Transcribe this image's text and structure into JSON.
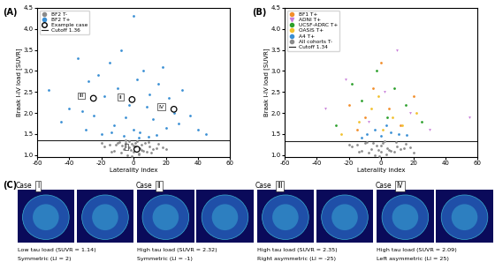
{
  "chart_data": [
    {
      "type": "scatter",
      "panel_label": "(A)",
      "x_label": "Laterality index",
      "y_label": "Braak I-IV load [SUVR]",
      "xlim": [
        -60,
        60
      ],
      "xticks": [
        -60,
        -40,
        -20,
        0,
        20,
        40,
        60
      ],
      "ylim": [
        0.95,
        4.5
      ],
      "yticks": [
        {
          "value": 1.0,
          "label": "1.0"
        },
        {
          "value": 1.5,
          "label": "1.5"
        },
        {
          "value": 2.0,
          "label": "2.0"
        },
        {
          "value": 2.5,
          "label": "2.5"
        },
        {
          "value": 3.0,
          "label": "3.0"
        },
        {
          "value": 3.5,
          "label": "3.5"
        },
        {
          "value": 4.0,
          "label": "4.0"
        },
        {
          "value": 4.5,
          "label": "4.5"
        }
      ],
      "legend": "upper left",
      "reference_line": {
        "value": 1.36,
        "name": "Cutoff 1.36",
        "color": "#222222"
      },
      "series": [
        {
          "name": "BF2 T-",
          "color": "#8c8c8c",
          "marker": "o",
          "x": [
            -18,
            -15,
            -12,
            -10,
            -8,
            -7,
            -6,
            -5,
            -4,
            -3,
            -2,
            -1,
            0,
            1,
            2,
            3,
            4,
            5,
            6,
            7,
            8,
            10,
            12,
            15,
            18,
            -9,
            -3,
            3,
            9,
            0,
            -14,
            14,
            -5,
            5,
            -1,
            1,
            -11,
            11,
            20,
            -20
          ],
          "values": [
            1.2,
            1.25,
            1.1,
            1.3,
            1.05,
            1.22,
            1.15,
            1.28,
            1.0,
            1.18,
            1.12,
            1.26,
            1.08,
            1.2,
            1.33,
            1.03,
            1.16,
            1.24,
            1.11,
            1.29,
            1.07,
            1.21,
            1.14,
            1.27,
            1.19,
            1.32,
            1.34,
            1.02,
            1.31,
            1.23,
            1.09,
            1.17,
            1.35,
            1.13,
            0.98,
            1.3,
            1.25,
            1.06,
            1.15,
            1.28
          ]
        },
        {
          "name": "BF2 T+",
          "color": "#3a8fd4",
          "marker": "o",
          "x": [
            -53,
            -45,
            -40,
            -35,
            -32,
            -30,
            -28,
            -25,
            -22,
            -20,
            -18,
            -15,
            -12,
            -10,
            -8,
            -5,
            -3,
            0,
            2,
            4,
            6,
            8,
            10,
            12,
            15,
            18,
            20,
            22,
            25,
            28,
            30,
            35,
            40,
            45,
            -6,
            3,
            -14,
            14,
            0,
            9
          ],
          "values": [
            2.55,
            1.8,
            2.1,
            3.3,
            2.05,
            1.6,
            2.75,
            1.95,
            2.9,
            1.5,
            2.4,
            3.2,
            1.7,
            2.6,
            3.5,
            1.9,
            2.2,
            4.3,
            2.8,
            1.55,
            3.0,
            2.15,
            2.45,
            1.85,
            2.7,
            3.1,
            1.65,
            2.35,
            2.0,
            1.75,
            2.55,
            1.95,
            1.6,
            1.5,
            1.45,
            1.42,
            1.55,
            1.48,
            1.6,
            1.44
          ]
        },
        {
          "name": "Example case",
          "color": "#000000",
          "marker": "open_circle",
          "x": [
            2,
            -1,
            -25,
            25
          ],
          "values": [
            1.14,
            2.32,
            2.35,
            2.09
          ],
          "point_labels": [
            "I",
            "II",
            "III",
            "IV"
          ]
        }
      ]
    },
    {
      "type": "scatter",
      "panel_label": "(B)",
      "x_label": "Laterality index",
      "y_label": "Braak I-IV load [SUVR]",
      "xlim": [
        -60,
        60
      ],
      "xticks": [
        -60,
        -40,
        -20,
        0,
        20,
        40,
        60
      ],
      "ylim": [
        0.95,
        4.5
      ],
      "yticks": [
        {
          "value": 1.0,
          "label": "1.0"
        },
        {
          "value": 1.5,
          "label": "1.5"
        },
        {
          "value": 2.0,
          "label": "2.0"
        },
        {
          "value": 2.5,
          "label": "2.5"
        },
        {
          "value": 3.0,
          "label": "3.0"
        },
        {
          "value": 3.5,
          "label": "3.5"
        },
        {
          "value": 4.0,
          "label": "4.0"
        },
        {
          "value": 4.5,
          "label": "4.5"
        }
      ],
      "legend": "upper left",
      "reference_line": {
        "value": 1.34,
        "name": "Cutoff 1.34",
        "color": "#222222"
      },
      "series": [
        {
          "name": "BF1 T+",
          "color": "#f28e2b",
          "marker": "o",
          "x": [
            -20,
            -10,
            -5,
            0,
            5,
            12,
            20,
            -15
          ],
          "values": [
            2.2,
            1.9,
            2.6,
            3.2,
            2.1,
            1.7,
            2.4,
            1.6
          ]
        },
        {
          "name": "ADNI T+",
          "color": "#c77cd9",
          "marker": "v",
          "x": [
            -35,
            -22,
            -8,
            2,
            10,
            18,
            30,
            55
          ],
          "values": [
            2.1,
            2.8,
            1.8,
            2.5,
            3.5,
            2.0,
            1.6,
            1.9
          ]
        },
        {
          "name": "UCSF-ADRC T+",
          "color": "#2ca02c",
          "marker": "o",
          "x": [
            -18,
            -12,
            -3,
            4,
            8,
            15,
            25,
            -28
          ],
          "values": [
            2.7,
            2.3,
            3.0,
            1.9,
            2.6,
            2.2,
            1.8,
            1.7
          ]
        },
        {
          "name": "OASIS T+",
          "color": "#f2c12e",
          "marker": "o",
          "x": [
            -14,
            -6,
            1,
            7,
            13,
            -2,
            22,
            -25
          ],
          "values": [
            1.8,
            2.1,
            1.6,
            1.9,
            1.7,
            2.4,
            2.0,
            1.5
          ]
        },
        {
          "name": "A4 T+",
          "color": "#3a8fd4",
          "marker": "o",
          "x": [
            -9,
            -4,
            0,
            3,
            6,
            11,
            -12,
            16
          ],
          "values": [
            1.5,
            1.6,
            1.45,
            1.7,
            1.55,
            1.5,
            1.42,
            1.48
          ]
        },
        {
          "name": "All cohorts T-",
          "color": "#8c8c8c",
          "marker": "o",
          "x": [
            -18,
            -15,
            -12,
            -10,
            -8,
            -6,
            -4,
            -2,
            0,
            2,
            4,
            6,
            8,
            10,
            12,
            15,
            18,
            -9,
            -3,
            3,
            9,
            0,
            -14,
            14,
            -5,
            5,
            -1,
            1,
            -20,
            20
          ],
          "values": [
            1.2,
            1.25,
            1.1,
            1.3,
            1.05,
            1.15,
            1.0,
            1.12,
            1.08,
            1.33,
            1.16,
            1.11,
            1.07,
            1.21,
            1.14,
            1.27,
            1.19,
            1.32,
            1.22,
            1.02,
            1.31,
            1.23,
            1.09,
            1.17,
            1.28,
            1.13,
            0.98,
            1.3,
            1.25,
            1.06
          ]
        }
      ]
    }
  ],
  "panel_c": {
    "panel_label": "(C)",
    "cases": [
      {
        "case": "Case",
        "id": "I",
        "caption": [
          "Low tau load (SUVR = 1.14)",
          "Symmetric (LI = 2)"
        ]
      },
      {
        "case": "Case",
        "id": "II",
        "caption": [
          "High tau load (SUVR = 2.32)",
          "Symmetric (LI = -1)"
        ]
      },
      {
        "case": "Case",
        "id": "III",
        "caption": [
          "High tau load (SUVR = 2.35)",
          "Right asymmetric (LI = -25)"
        ]
      },
      {
        "case": "Case",
        "id": "IV",
        "caption": [
          "High tau load (SUVR = 2.09)",
          "Left asymmetric (LI = 25)"
        ]
      }
    ]
  }
}
